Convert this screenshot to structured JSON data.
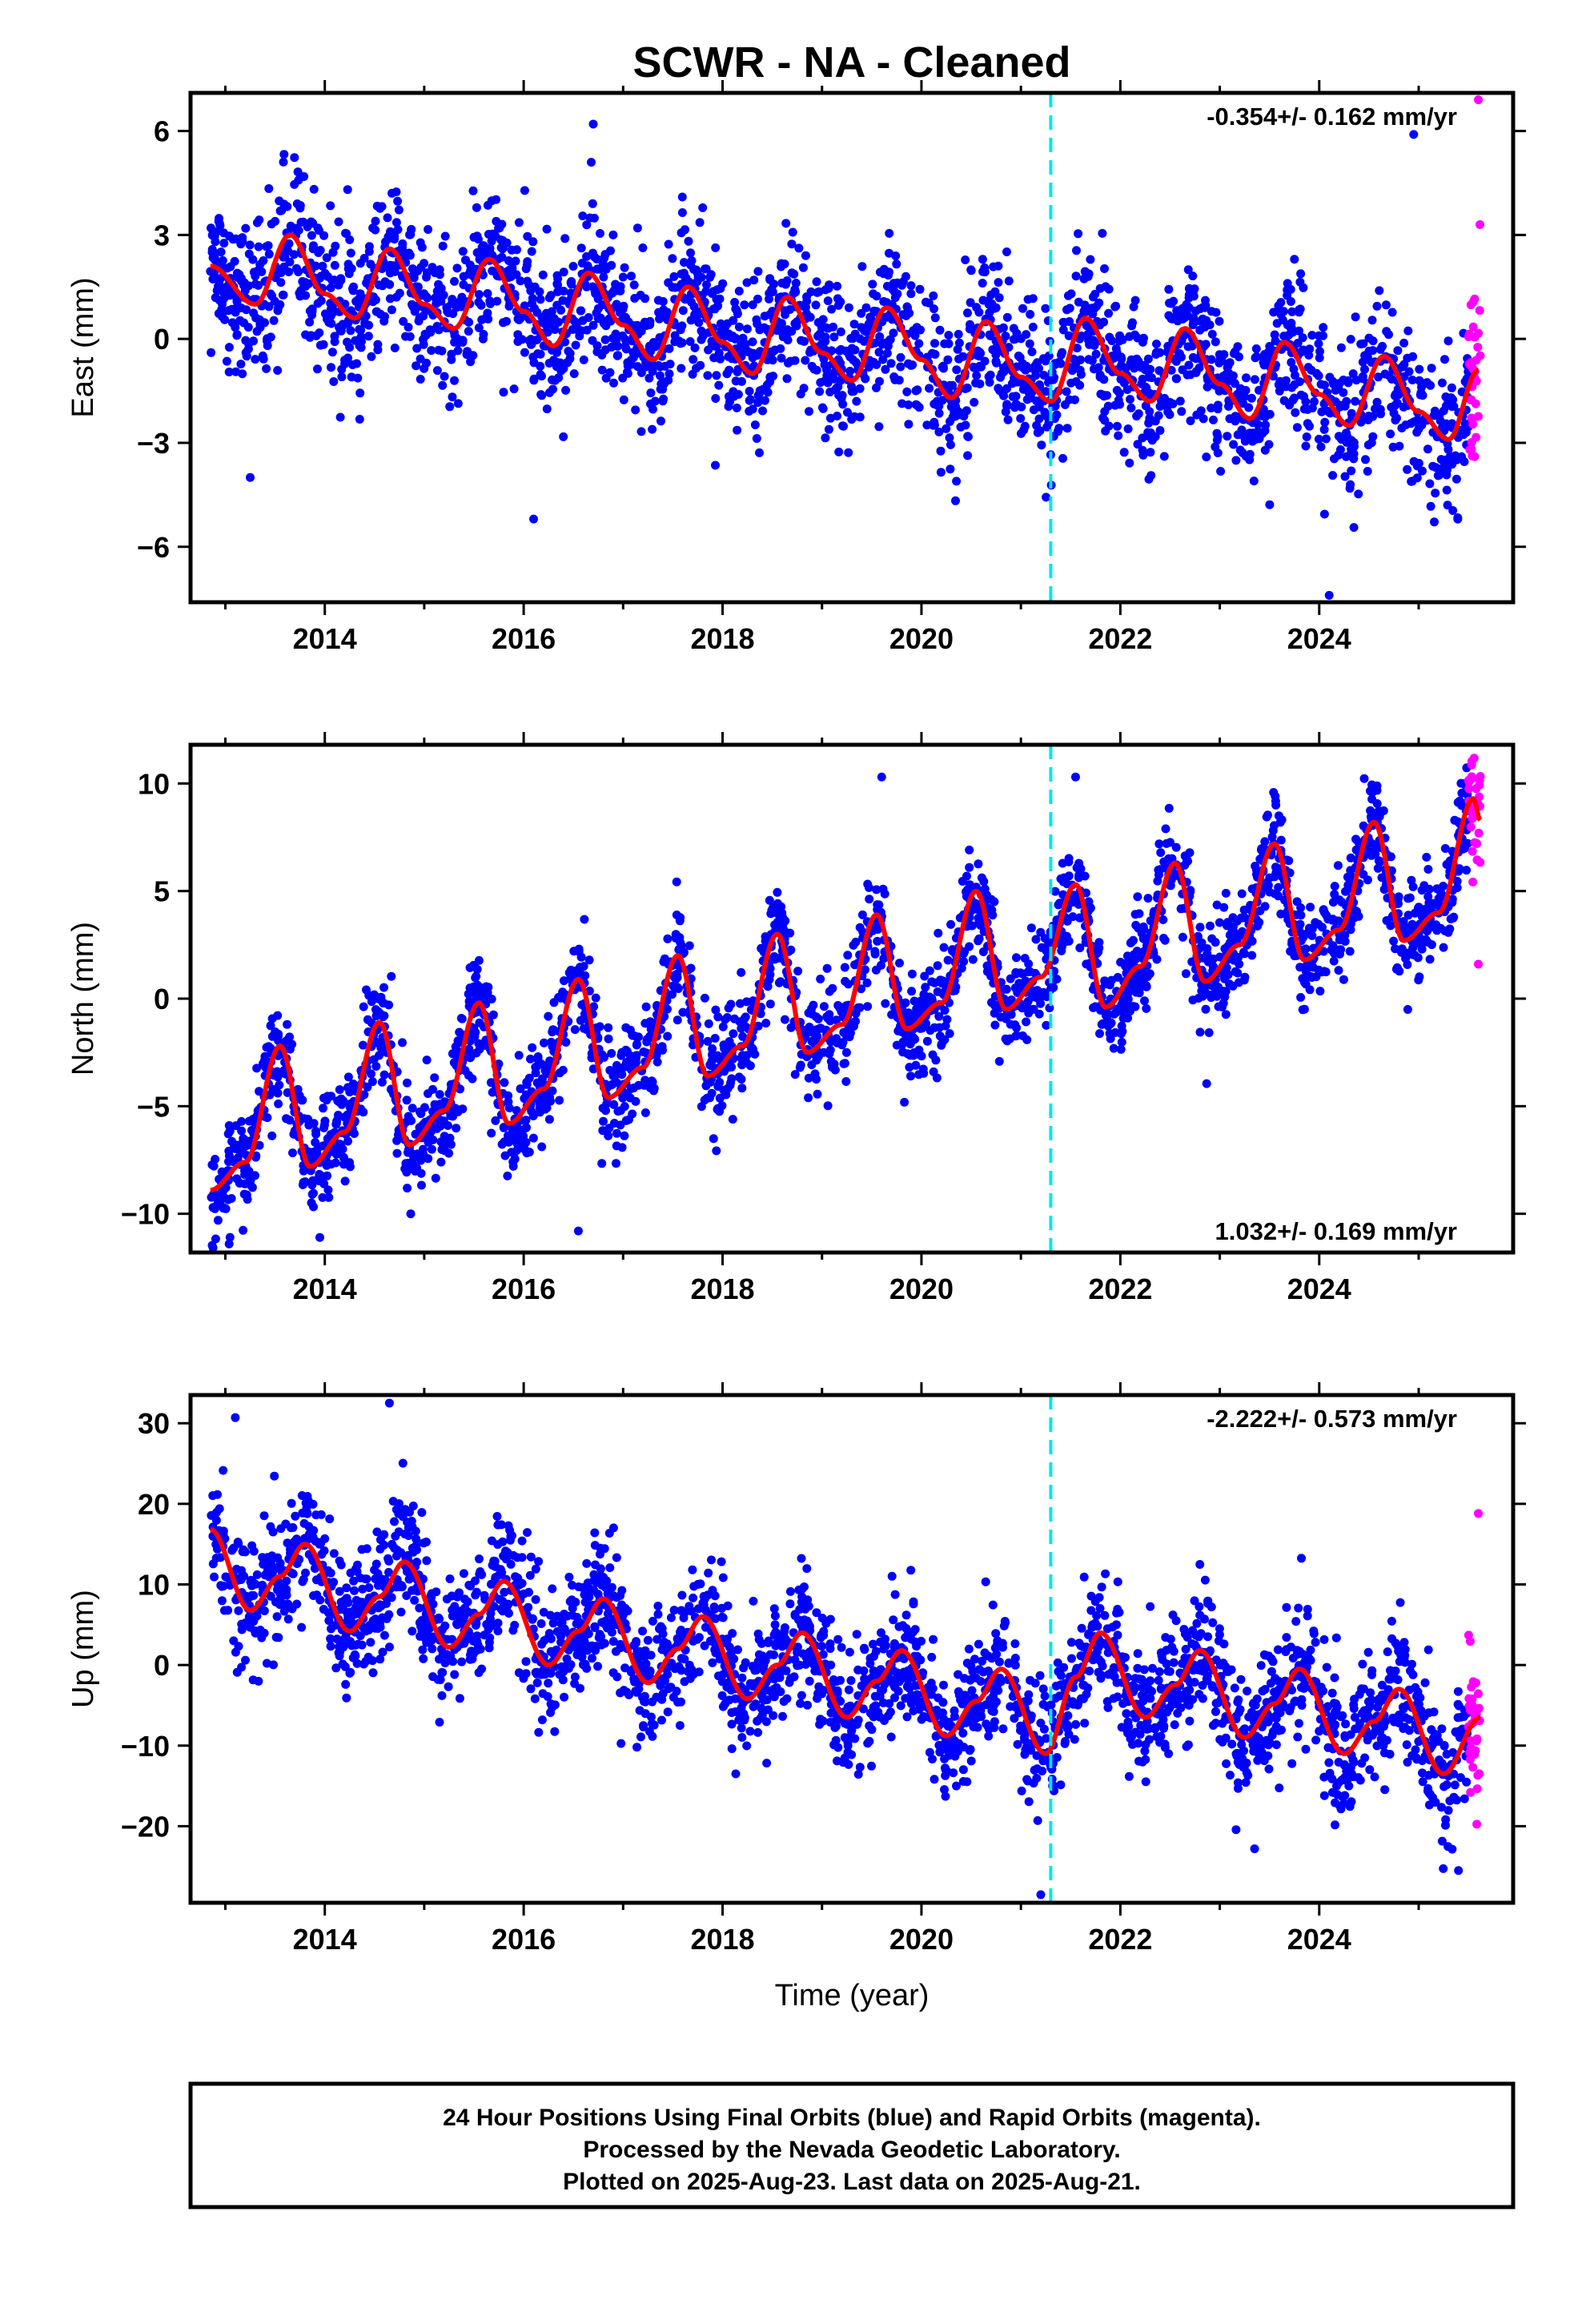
{
  "title": "SCWR  - NA - Cleaned",
  "colors": {
    "final_orbits": "#0000ff",
    "rapid_orbits": "#ff00ff",
    "model": "#ff0000",
    "event_line": "#00e5ee",
    "frame": "#000000"
  },
  "x_tick_labels": [
    "2014",
    "2016",
    "2018",
    "2020",
    "2022",
    "2024"
  ],
  "x_axis_label": "Time (year)",
  "footer": {
    "line1": "24 Hour Positions Using Final Orbits (blue) and Rapid Orbits (magenta).",
    "line2": "Processed by the Nevada Geodetic Laboratory.",
    "line3": "Plotted on 2025-Aug-23. Last data on 2025-Aug-21."
  },
  "chart_data": [
    {
      "type": "scatter",
      "name": "East",
      "ylabel": "East (mm)",
      "rate_label": "-0.354+/- 0.162 mm/yr",
      "rate_position": "top-right",
      "xlim": [
        2012.65,
        2025.95
      ],
      "ylim": [
        -7.6,
        7.1
      ],
      "yticks": [
        -6,
        -3,
        0,
        3,
        6
      ],
      "y_tick_labels": [
        "−6",
        "−3",
        "0",
        "3",
        "6"
      ],
      "event_line_x": 2021.3,
      "series": [
        {
          "name": "Final Orbits",
          "color": "#0000ff",
          "x_range": [
            2012.85,
            2025.5
          ],
          "scatter_sd": 1.1,
          "points": 2600
        },
        {
          "name": "Rapid Orbits",
          "color": "#ff00ff",
          "x_range": [
            2025.5,
            2025.62
          ],
          "points": 35
        }
      ],
      "model_curve": {
        "x": [
          2012.85,
          2013.3,
          2013.65,
          2014.0,
          2014.3,
          2014.65,
          2015.0,
          2015.3,
          2015.65,
          2016.0,
          2016.3,
          2016.65,
          2017.0,
          2017.3,
          2017.65,
          2018.0,
          2018.3,
          2018.65,
          2019.0,
          2019.3,
          2019.65,
          2020.0,
          2020.3,
          2020.65,
          2021.0,
          2021.3,
          2021.65,
          2022.0,
          2022.3,
          2022.65,
          2023.0,
          2023.3,
          2023.65,
          2024.0,
          2024.3,
          2024.65,
          2025.0,
          2025.3,
          2025.6
        ],
        "y": [
          2.1,
          1.0,
          3.0,
          1.3,
          0.6,
          2.6,
          1.0,
          0.3,
          2.3,
          0.8,
          -0.2,
          1.9,
          0.4,
          -0.6,
          1.5,
          -0.1,
          -1.0,
          1.2,
          -0.4,
          -1.2,
          0.9,
          -0.6,
          -1.7,
          0.5,
          -1.1,
          -1.8,
          0.6,
          -1.0,
          -1.8,
          0.3,
          -1.3,
          -2.3,
          -0.1,
          -1.6,
          -2.5,
          -0.5,
          -2.1,
          -2.9,
          -0.9
        ]
      },
      "outliers": [
        {
          "x": 2013.25,
          "y": -4.0
        },
        {
          "x": 2016.1,
          "y": -5.2
        },
        {
          "x": 2016.7,
          "y": 6.2
        },
        {
          "x": 2024.1,
          "y": -7.4
        },
        {
          "x": 2024.95,
          "y": 5.9
        },
        {
          "x": 2025.6,
          "y": 6.9
        }
      ]
    },
    {
      "type": "scatter",
      "name": "North",
      "ylabel": "North (mm)",
      "rate_label": "1.032+/- 0.169 mm/yr",
      "rate_position": "bottom-right",
      "xlim": [
        2012.65,
        2025.95
      ],
      "ylim": [
        -11.8,
        11.8
      ],
      "yticks": [
        -10,
        -5,
        0,
        5,
        10
      ],
      "y_tick_labels": [
        "−10",
        "−5",
        "0",
        "5",
        "10"
      ],
      "event_line_x": 2021.3,
      "series": [
        {
          "name": "Final Orbits",
          "color": "#0000ff",
          "x_range": [
            2012.85,
            2025.5
          ],
          "scatter_sd": 1.2,
          "points": 2600
        },
        {
          "name": "Rapid Orbits",
          "color": "#ff00ff",
          "x_range": [
            2025.5,
            2025.62
          ],
          "points": 35
        }
      ],
      "model_curve": {
        "x": [
          2012.85,
          2013.2,
          2013.55,
          2013.85,
          2014.2,
          2014.55,
          2014.85,
          2015.2,
          2015.55,
          2015.85,
          2016.2,
          2016.55,
          2016.85,
          2017.2,
          2017.55,
          2017.85,
          2018.2,
          2018.55,
          2018.85,
          2019.2,
          2019.55,
          2019.85,
          2020.2,
          2020.55,
          2020.85,
          2021.2,
          2021.55,
          2021.85,
          2022.2,
          2022.55,
          2022.85,
          2023.2,
          2023.55,
          2023.85,
          2024.2,
          2024.55,
          2024.85,
          2025.2,
          2025.55,
          2025.62
        ],
        "y": [
          -8.9,
          -7.6,
          -2.2,
          -7.8,
          -6.2,
          -1.1,
          -6.8,
          -5.2,
          -0.2,
          -5.8,
          -4.2,
          0.9,
          -4.6,
          -3.2,
          2.0,
          -3.6,
          -2.2,
          3.0,
          -2.5,
          -1.2,
          3.9,
          -1.4,
          -0.2,
          5.0,
          -0.5,
          1.0,
          5.3,
          -0.4,
          1.5,
          6.3,
          0.8,
          2.5,
          7.2,
          1.8,
          3.2,
          8.2,
          2.7,
          4.0,
          9.3,
          8.3
        ]
      },
      "outliers": [
        {
          "x": 2016.55,
          "y": -10.8
        },
        {
          "x": 2013.95,
          "y": -11.1
        },
        {
          "x": 2019.6,
          "y": 10.3
        },
        {
          "x": 2021.55,
          "y": 10.3
        },
        {
          "x": 2025.6,
          "y": 1.6
        }
      ]
    },
    {
      "type": "scatter",
      "name": "Up",
      "ylabel": "Up (mm)",
      "rate_label": "-2.222+/- 0.573 mm/yr",
      "rate_position": "top-right",
      "xlim": [
        2012.65,
        2025.95
      ],
      "ylim": [
        -29.5,
        33.5
      ],
      "yticks": [
        -20,
        -10,
        0,
        10,
        20,
        30
      ],
      "y_tick_labels": [
        "−20",
        "−10",
        "0",
        "10",
        "20",
        "30"
      ],
      "event_line_x": 2021.3,
      "series": [
        {
          "name": "Final Orbits",
          "color": "#0000ff",
          "x_range": [
            2012.85,
            2025.5
          ],
          "scatter_sd": 4.0,
          "points": 2600
        },
        {
          "name": "Rapid Orbits",
          "color": "#ff00ff",
          "x_range": [
            2025.5,
            2025.62
          ],
          "points": 35
        }
      ],
      "model_curve": {
        "x": [
          2012.85,
          2013.25,
          2013.55,
          2013.8,
          2014.25,
          2014.55,
          2014.8,
          2015.25,
          2015.55,
          2015.8,
          2016.25,
          2016.55,
          2016.8,
          2017.25,
          2017.55,
          2017.8,
          2018.25,
          2018.55,
          2018.8,
          2019.25,
          2019.55,
          2019.8,
          2020.25,
          2020.55,
          2020.8,
          2021.25,
          2021.55,
          2021.8,
          2022.25,
          2022.55,
          2022.8,
          2023.25,
          2023.55,
          2023.8,
          2024.25,
          2024.55,
          2024.8,
          2025.25,
          2025.62
        ],
        "y": [
          16.8,
          6.8,
          11.0,
          15.0,
          4.2,
          8.5,
          12.8,
          2.2,
          6.3,
          10.4,
          0.0,
          4.2,
          8.2,
          -2.2,
          2.0,
          6.0,
          -4.2,
          0.0,
          4.0,
          -6.5,
          -2.0,
          1.8,
          -8.8,
          -4.5,
          -0.5,
          -11.0,
          -1.5,
          4.0,
          -6.5,
          -2.5,
          1.8,
          -9.0,
          -4.8,
          -0.5,
          -11.0,
          -7.0,
          -3.0,
          -13.5,
          -6.5
        ]
      },
      "outliers": [
        {
          "x": 2013.1,
          "y": 30.7
        },
        {
          "x": 2014.65,
          "y": 32.5
        },
        {
          "x": 2021.2,
          "y": -28.5
        },
        {
          "x": 2023.35,
          "y": -22.8
        },
        {
          "x": 2025.4,
          "y": -25.5
        },
        {
          "x": 2025.6,
          "y": 18.8
        }
      ]
    }
  ]
}
